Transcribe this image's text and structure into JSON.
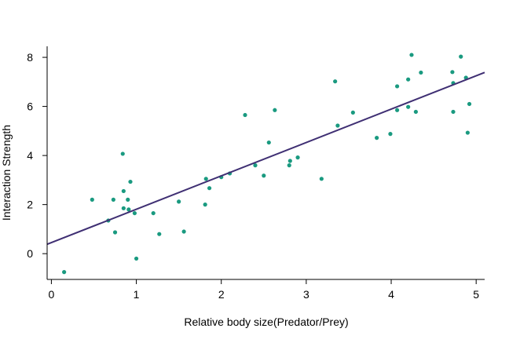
{
  "chart_data": {
    "type": "scatter",
    "title": "",
    "xlabel": "Relative body size(Predator/Prey)",
    "ylabel": "Interaction Strength",
    "xlim": [
      -0.05,
      5.1
    ],
    "ylim": [
      -1.05,
      8.45
    ],
    "x_ticks": [
      0,
      1,
      2,
      3,
      4,
      5
    ],
    "y_ticks": [
      0,
      2,
      4,
      6,
      8
    ],
    "grid": false,
    "legend": "none",
    "point_color": "#1a9a80",
    "line_color": "#3f2f73",
    "points": [
      {
        "x": 0.15,
        "y": -0.75
      },
      {
        "x": 0.48,
        "y": 2.2
      },
      {
        "x": 0.67,
        "y": 1.35
      },
      {
        "x": 0.73,
        "y": 2.2
      },
      {
        "x": 0.75,
        "y": 0.87
      },
      {
        "x": 0.84,
        "y": 4.07
      },
      {
        "x": 0.85,
        "y": 2.55
      },
      {
        "x": 0.85,
        "y": 1.85
      },
      {
        "x": 0.9,
        "y": 2.2
      },
      {
        "x": 0.91,
        "y": 1.8
      },
      {
        "x": 0.93,
        "y": 2.93
      },
      {
        "x": 0.98,
        "y": 1.65
      },
      {
        "x": 1.0,
        "y": -0.2
      },
      {
        "x": 1.2,
        "y": 1.65
      },
      {
        "x": 1.27,
        "y": 0.8
      },
      {
        "x": 1.5,
        "y": 2.12
      },
      {
        "x": 1.56,
        "y": 0.9
      },
      {
        "x": 1.81,
        "y": 2.0
      },
      {
        "x": 1.82,
        "y": 3.05
      },
      {
        "x": 1.86,
        "y": 2.67
      },
      {
        "x": 2.0,
        "y": 3.12
      },
      {
        "x": 2.1,
        "y": 3.27
      },
      {
        "x": 2.28,
        "y": 5.65
      },
      {
        "x": 2.4,
        "y": 3.6
      },
      {
        "x": 2.5,
        "y": 3.18
      },
      {
        "x": 2.56,
        "y": 4.53
      },
      {
        "x": 2.63,
        "y": 5.85
      },
      {
        "x": 2.8,
        "y": 3.6
      },
      {
        "x": 2.81,
        "y": 3.78
      },
      {
        "x": 2.9,
        "y": 3.92
      },
      {
        "x": 3.18,
        "y": 3.05
      },
      {
        "x": 3.34,
        "y": 7.02
      },
      {
        "x": 3.37,
        "y": 5.22
      },
      {
        "x": 3.55,
        "y": 5.75
      },
      {
        "x": 3.83,
        "y": 4.72
      },
      {
        "x": 3.99,
        "y": 4.88
      },
      {
        "x": 4.07,
        "y": 6.82
      },
      {
        "x": 4.07,
        "y": 5.85
      },
      {
        "x": 4.2,
        "y": 7.1
      },
      {
        "x": 4.2,
        "y": 5.98
      },
      {
        "x": 4.24,
        "y": 8.1
      },
      {
        "x": 4.29,
        "y": 5.78
      },
      {
        "x": 4.35,
        "y": 7.38
      },
      {
        "x": 4.72,
        "y": 7.4
      },
      {
        "x": 4.73,
        "y": 6.95
      },
      {
        "x": 4.73,
        "y": 5.78
      },
      {
        "x": 4.82,
        "y": 8.03
      },
      {
        "x": 4.88,
        "y": 7.17
      },
      {
        "x": 4.9,
        "y": 4.93
      },
      {
        "x": 4.92,
        "y": 6.1
      }
    ],
    "fit_line": {
      "intercept": 0.45,
      "slope": 1.36
    }
  }
}
